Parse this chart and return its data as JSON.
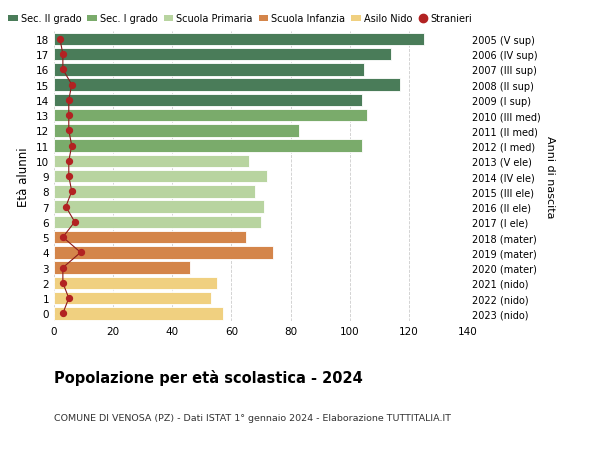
{
  "ages": [
    18,
    17,
    16,
    15,
    14,
    13,
    12,
    11,
    10,
    9,
    8,
    7,
    6,
    5,
    4,
    3,
    2,
    1,
    0
  ],
  "right_labels": [
    "2005 (V sup)",
    "2006 (IV sup)",
    "2007 (III sup)",
    "2008 (II sup)",
    "2009 (I sup)",
    "2010 (III med)",
    "2011 (II med)",
    "2012 (I med)",
    "2013 (V ele)",
    "2014 (IV ele)",
    "2015 (III ele)",
    "2016 (II ele)",
    "2017 (I ele)",
    "2018 (mater)",
    "2019 (mater)",
    "2020 (mater)",
    "2021 (nido)",
    "2022 (nido)",
    "2023 (nido)"
  ],
  "bar_values": [
    125,
    114,
    105,
    117,
    104,
    106,
    83,
    104,
    66,
    72,
    68,
    71,
    70,
    65,
    74,
    46,
    55,
    53,
    57
  ],
  "bar_colors": [
    "#4a7c59",
    "#4a7c59",
    "#4a7c59",
    "#4a7c59",
    "#4a7c59",
    "#7aab6b",
    "#7aab6b",
    "#7aab6b",
    "#b8d4a0",
    "#b8d4a0",
    "#b8d4a0",
    "#b8d4a0",
    "#b8d4a0",
    "#d4854a",
    "#d4854a",
    "#d4854a",
    "#f0d080",
    "#f0d080",
    "#f0d080"
  ],
  "stranieri_values": [
    2,
    3,
    3,
    6,
    5,
    5,
    5,
    6,
    5,
    5,
    6,
    4,
    7,
    3,
    9,
    3,
    3,
    5,
    3
  ],
  "title": "Popolazione per età scolastica - 2024",
  "subtitle": "COMUNE DI VENOSA (PZ) - Dati ISTAT 1° gennaio 2024 - Elaborazione TUTTITALIA.IT",
  "ylabel_label": "Età alunni",
  "right_ylabel": "Anni di nascita",
  "xlim": [
    0,
    140
  ],
  "xticks": [
    0,
    20,
    40,
    60,
    80,
    100,
    120,
    140
  ],
  "legend_labels": [
    "Sec. II grado",
    "Sec. I grado",
    "Scuola Primaria",
    "Scuola Infanzia",
    "Asilo Nido",
    "Stranieri"
  ],
  "legend_colors": [
    "#4a7c59",
    "#7aab6b",
    "#b8d4a0",
    "#d4854a",
    "#f0d080",
    "#b22222"
  ],
  "bg_color": "#ffffff",
  "grid_color": "#cccccc",
  "stranieri_line_color": "#8b1a1a",
  "stranieri_dot_color": "#b22222"
}
